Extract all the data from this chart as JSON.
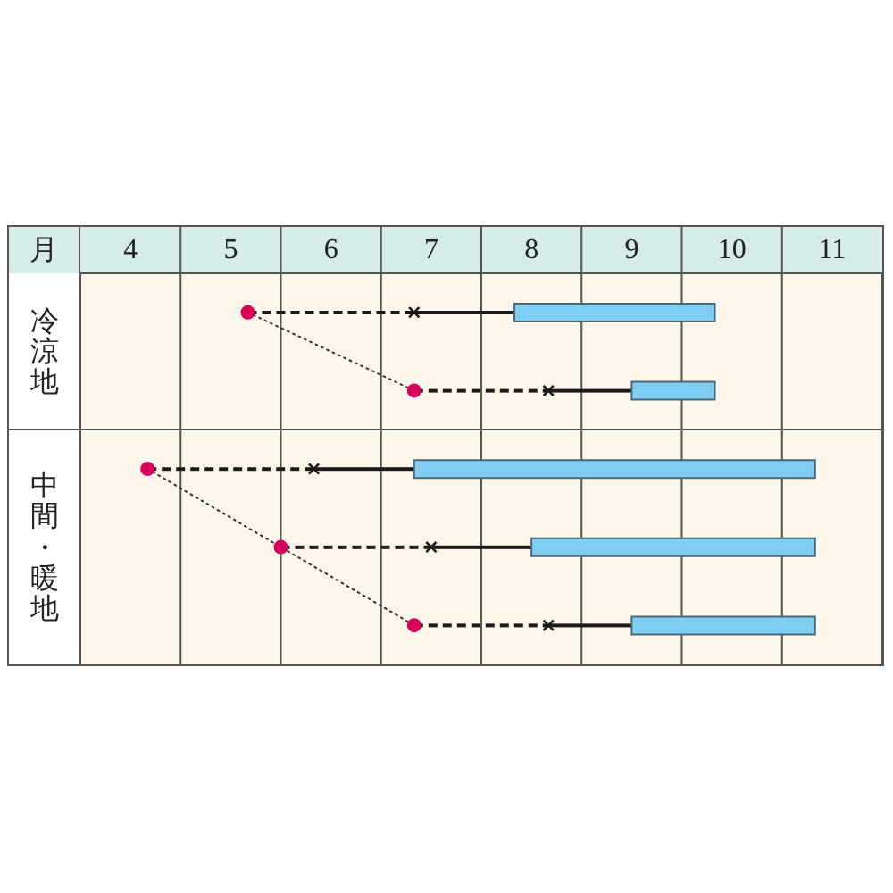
{
  "chart_data": {
    "type": "bar",
    "orientation": "horizontal",
    "xlabel": "月",
    "categories": [
      null,
      null,
      null,
      null,
      null
    ],
    "xlim": [
      4,
      12
    ],
    "xticks": [
      {
        "value": 4.5,
        "label": "4"
      },
      {
        "value": 5,
        "label": null
      },
      {
        "value": 5.5,
        "label": "5"
      },
      {
        "value": 6,
        "label": null
      },
      {
        "value": 6.5,
        "label": "6"
      },
      {
        "value": 7,
        "label": null
      },
      {
        "value": 7.5,
        "label": "7"
      },
      {
        "value": 8,
        "label": null
      },
      {
        "value": 8.5,
        "label": "8"
      },
      {
        "value": 9,
        "label": null
      },
      {
        "value": 9.5,
        "label": "9"
      },
      {
        "value": 10,
        "label": null
      },
      {
        "value": 10.5,
        "label": "10"
      },
      {
        "value": 11,
        "label": null
      },
      {
        "value": 11.5,
        "label": "11"
      }
    ],
    "grid": "x",
    "tick_labels": "x",
    "annotations": [
      "冷涼地",
      "中間・暖地"
    ],
    "series": [
      {
        "type": "line",
        "color": "#333333",
        "line_style": "dotted",
        "marker": "none",
        "values": [
          5.67,
          7.33,
          null,
          null,
          null
        ]
      },
      {
        "type": "line",
        "color": "#333333",
        "line_style": "dotted",
        "marker": "none",
        "values": [
          null,
          null,
          4.67,
          6.0,
          7.33
        ]
      },
      {
        "type": "bar",
        "color": "#1a1a1a",
        "line_style": "dashed",
        "base": [
          5.67,
          7.33,
          4.67,
          6.0,
          7.33
        ],
        "values": [
          1.66,
          1.34,
          1.66,
          1.5,
          1.34
        ]
      },
      {
        "type": "bar",
        "color": "#1a1a1a",
        "line_style": "solid",
        "base": [
          7.33,
          8.67,
          6.33,
          7.5,
          8.67
        ],
        "values": [
          1.0,
          0.83,
          1.0,
          1.0,
          0.83
        ]
      },
      {
        "type": "bar",
        "color": "#7fcdf2",
        "base": [
          8.33,
          9.5,
          7.33,
          8.5,
          9.5
        ],
        "values": [
          2.0,
          0.83,
          4.0,
          2.83,
          1.83
        ]
      },
      {
        "type": "scatter",
        "color": "#d6005a",
        "marker": "circle",
        "values": [
          5.67,
          7.33,
          4.67,
          6.0,
          7.33
        ]
      },
      {
        "type": "scatter",
        "color": "#1a1a1a",
        "marker": "cross",
        "values": [
          7.33,
          8.67,
          6.33,
          7.5,
          8.67
        ]
      }
    ]
  }
}
